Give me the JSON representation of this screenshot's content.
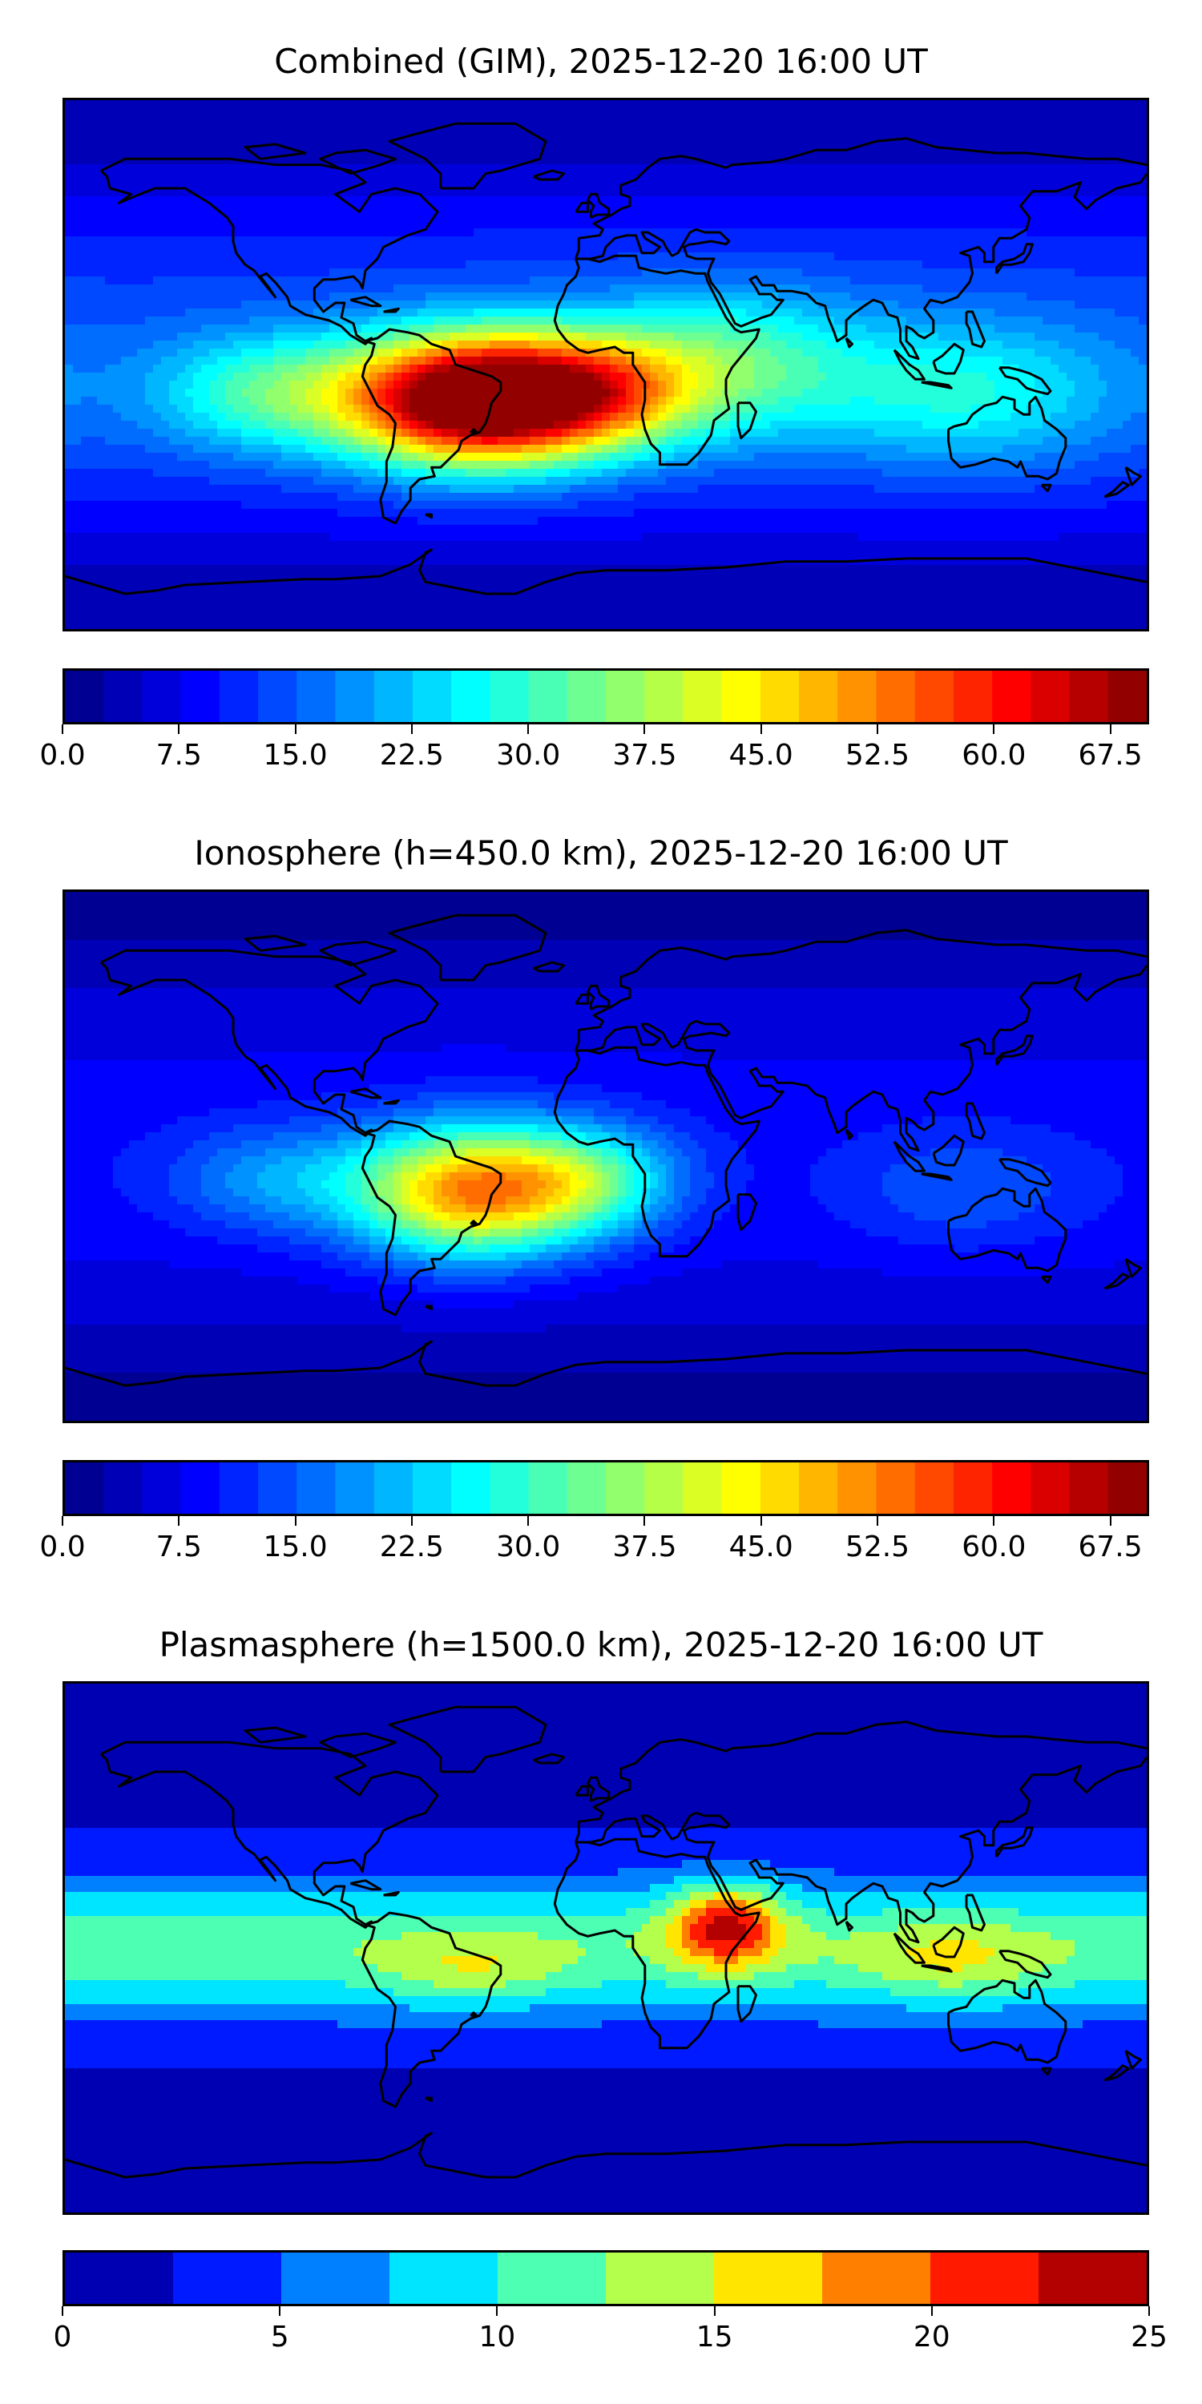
{
  "panels": [
    {
      "title": "Combined (GIM), 2025-12-20 16:00 UT",
      "colorbar": {
        "min": 0,
        "max": 70,
        "levels": 28,
        "ticks": [
          "0.0",
          "7.5",
          "15.0",
          "22.5",
          "30.0",
          "37.5",
          "45.0",
          "52.5",
          "60.0",
          "67.5"
        ],
        "tick_values": [
          0,
          7.5,
          15,
          22.5,
          30,
          37.5,
          45,
          52.5,
          60,
          67.5
        ]
      },
      "features": [
        {
          "lon": -45,
          "lat": -12,
          "amp": 62,
          "sx": 40,
          "sy": 22
        },
        {
          "lon": -5,
          "lat": -10,
          "amp": 30,
          "sx": 35,
          "sy": 20
        },
        {
          "lon": 40,
          "lat": 0,
          "amp": 18,
          "sx": 45,
          "sy": 25
        },
        {
          "lon": 120,
          "lat": -10,
          "amp": 14,
          "sx": 50,
          "sy": 25
        },
        {
          "lon": -110,
          "lat": -10,
          "amp": 18,
          "sx": 40,
          "sy": 20
        }
      ],
      "base": 14
    },
    {
      "title": "Ionosphere  (h=450.0 km), 2025-12-20 16:00 UT",
      "colorbar": {
        "min": 0,
        "max": 70,
        "levels": 28,
        "ticks": [
          "0.0",
          "7.5",
          "15.0",
          "22.5",
          "30.0",
          "37.5",
          "45.0",
          "52.5",
          "60.0",
          "67.5"
        ],
        "tick_values": [
          0,
          7.5,
          15,
          22.5,
          30,
          37.5,
          45,
          52.5,
          60,
          67.5
        ]
      },
      "features": [
        {
          "lon": -45,
          "lat": -12,
          "amp": 42,
          "sx": 38,
          "sy": 22
        },
        {
          "lon": -5,
          "lat": -8,
          "amp": 18,
          "sx": 30,
          "sy": 18
        },
        {
          "lon": -110,
          "lat": -8,
          "amp": 10,
          "sx": 35,
          "sy": 18
        },
        {
          "lon": 120,
          "lat": -12,
          "amp": 6,
          "sx": 40,
          "sy": 20
        }
      ],
      "base": 9
    },
    {
      "title": "Plasmasphere (h=1500.0 km), 2025-12-20 16:00 UT",
      "colorbar": {
        "min": 0,
        "max": 25,
        "levels": 10,
        "ticks": [
          "0",
          "5",
          "10",
          "15",
          "20",
          "25"
        ],
        "tick_values": [
          0,
          5,
          10,
          15,
          20,
          25
        ]
      },
      "features": [
        {
          "lon": 40,
          "lat": 8,
          "amp": 13,
          "sx": 18,
          "sy": 14
        },
        {
          "lon": -45,
          "lat": -8,
          "amp": 4,
          "sx": 30,
          "sy": 12
        },
        {
          "lon": 115,
          "lat": -5,
          "amp": 4,
          "sx": 30,
          "sy": 14
        }
      ],
      "band": {
        "amp": 9,
        "sy": 22,
        "lat": 0
      },
      "base": 3
    }
  ],
  "colors": {
    "coastline": "#000000",
    "colormap": [
      "#00007f",
      "#0000ff",
      "#007fff",
      "#00e5ff",
      "#4dffb3",
      "#b3ff4d",
      "#ffe500",
      "#ff7f00",
      "#ff1a00",
      "#7f0000"
    ]
  }
}
